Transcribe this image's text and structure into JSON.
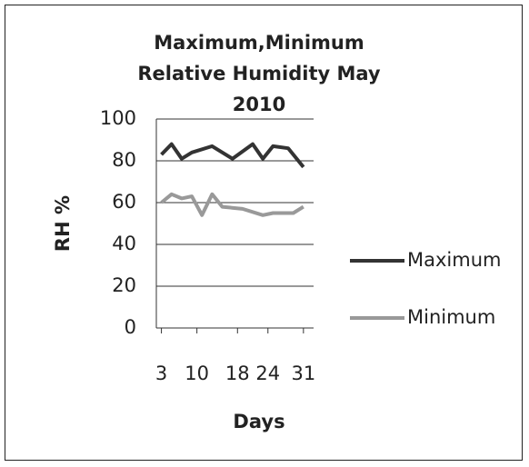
{
  "chart_data": {
    "type": "line",
    "title": "Maximum,Minimum Relative Humidity May 2010",
    "x_label": "Days",
    "y_label": "RH %",
    "series": [
      {
        "name": "Maximum",
        "color": "#333333",
        "x": [
          3,
          5,
          7,
          9,
          13,
          17,
          21,
          23,
          25,
          28,
          31
        ],
        "values": [
          83,
          88,
          81,
          84,
          87,
          81,
          88,
          81,
          87,
          86,
          77
        ]
      },
      {
        "name": "Minimum",
        "color": "#999999",
        "x": [
          3,
          5,
          7,
          9,
          11,
          13,
          15,
          19,
          23,
          25,
          29,
          31
        ],
        "values": [
          60,
          64,
          62,
          63,
          54,
          64,
          58,
          57,
          54,
          55,
          55,
          58
        ]
      }
    ],
    "xlim": [
      2,
      33
    ],
    "xticks": [
      3,
      10,
      18,
      24,
      31
    ],
    "ylim": [
      0,
      100
    ],
    "yticks": [
      0,
      20,
      40,
      60,
      80,
      100
    ],
    "grid": true,
    "legend": "right"
  }
}
